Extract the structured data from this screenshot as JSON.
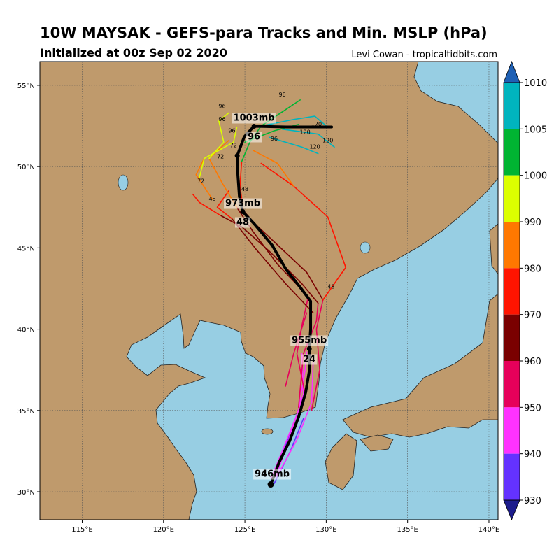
{
  "chart_data": {
    "type": "map",
    "title": "10W MAYSAK - GEFS-para Tracks and Min. MSLP (hPa)",
    "subtitle": "Initialized at 00z Sep 02 2020",
    "credit": "Levi Cowan - tropicaltidbits.com",
    "xlim": [
      112.4,
      140.56
    ],
    "ylim": [
      28.28,
      56.46
    ],
    "xticks": [
      {
        "value": 115,
        "label": "115°E"
      },
      {
        "value": 120,
        "label": "120°E"
      },
      {
        "value": 125,
        "label": "125°E"
      },
      {
        "value": 130,
        "label": "130°E"
      },
      {
        "value": 135,
        "label": "135°E"
      },
      {
        "value": 140,
        "label": "140°E"
      }
    ],
    "yticks": [
      {
        "value": 30,
        "label": "30°N"
      },
      {
        "value": 35,
        "label": "35°N"
      },
      {
        "value": 40,
        "label": "40°N"
      },
      {
        "value": 45,
        "label": "45°N"
      },
      {
        "value": 50,
        "label": "50°N"
      },
      {
        "value": 55,
        "label": "55°N"
      }
    ],
    "grid": true,
    "colorbar": {
      "ticks": [
        1010,
        1005,
        1000,
        990,
        980,
        970,
        960,
        950,
        940,
        930
      ],
      "colors": [
        "#00b4be",
        "#00b432",
        "#dcff00",
        "#ff7800",
        "#ff1400",
        "#7a0000",
        "#e6005a",
        "#ff32ff",
        "#6432ff"
      ],
      "extend_colors": [
        "#1f60b4",
        "#1c1c8c"
      ]
    },
    "members": [
      {
        "color": "#6432ff",
        "lon": [
          126.5,
          127.3,
          128.0
        ],
        "lat": [
          30.4,
          32.3,
          34.2
        ]
      },
      {
        "color": "#6432ff",
        "lon": [
          126.8,
          127.8,
          128.6
        ],
        "lat": [
          30.5,
          32.5,
          34.5
        ]
      },
      {
        "color": "#ff32ff",
        "lon": [
          126.6,
          127.5,
          128.3,
          128.7,
          128.8
        ],
        "lat": [
          30.8,
          33.0,
          35.0,
          37.5,
          38.6
        ]
      },
      {
        "color": "#ff32ff",
        "lon": [
          127.0,
          128.2,
          129.1,
          129.2
        ],
        "lat": [
          31.0,
          33.2,
          35.5,
          38.0
        ]
      },
      {
        "color": "#ff32ff",
        "lon": [
          126.9,
          127.8,
          128.6,
          128.5
        ],
        "lat": [
          30.9,
          33.5,
          36.0,
          38.5
        ]
      },
      {
        "color": "#e6005a",
        "lon": [
          128.3,
          128.6,
          129.4,
          129.5
        ],
        "lat": [
          35.2,
          38.5,
          40.5,
          41.6
        ]
      },
      {
        "color": "#e6005a",
        "lon": [
          129.1,
          129.6,
          129.4,
          129.8
        ],
        "lat": [
          35.0,
          37.5,
          40.0,
          41.8
        ]
      },
      {
        "color": "#e6005a",
        "lon": [
          128.7,
          128.2,
          128.5,
          128.9
        ],
        "lat": [
          36.0,
          38.5,
          40.2,
          42.0
        ]
      },
      {
        "color": "#e6005a",
        "lon": [
          127.5,
          128.0,
          128.8
        ],
        "lat": [
          36.5,
          38.5,
          41.0
        ]
      },
      {
        "color": "#7a0000",
        "lon": [
          129.5,
          128.5,
          126.5,
          124.8,
          123.5
        ],
        "lat": [
          41.6,
          42.8,
          44.8,
          46.3,
          47.0
        ]
      },
      {
        "color": "#7a0000",
        "lon": [
          128.9,
          127.0,
          125.5,
          124.5
        ],
        "lat": [
          42.0,
          44.0,
          46.0,
          47.5
        ]
      },
      {
        "color": "#7a0000",
        "lon": [
          129.8,
          128.8,
          127.2,
          125.6,
          124.9
        ],
        "lat": [
          41.8,
          43.5,
          45.0,
          46.5,
          47.3
        ]
      },
      {
        "color": "#7a0000",
        "lon": [
          129.2,
          127.5,
          125.7,
          124.2
        ],
        "lat": [
          41.0,
          42.8,
          44.9,
          46.8
        ]
      },
      {
        "color": "#ff1400",
        "lon": [
          123.5,
          122.2,
          121.8
        ],
        "lat": [
          47.0,
          47.8,
          48.3
        ]
      },
      {
        "color": "#ff1400",
        "lon": [
          124.9,
          124.7,
          124.8
        ],
        "lat": [
          47.3,
          48.8,
          50.3
        ]
      },
      {
        "color": "#ff1400",
        "lon": [
          129.8,
          131.2,
          130.1,
          128.0,
          126.0
        ],
        "lat": [
          41.8,
          43.8,
          46.9,
          48.8,
          50.2
        ]
      },
      {
        "color": "#ff1400",
        "lon": [
          124.2,
          123.3,
          124.0
        ],
        "lat": [
          46.8,
          47.5,
          48.5
        ]
      },
      {
        "color": "#ff7800",
        "lon": [
          128.0,
          127.0,
          125.5
        ],
        "lat": [
          48.8,
          50.2,
          51.0
        ]
      },
      {
        "color": "#ff7800",
        "lon": [
          123.0,
          122.0,
          122.5
        ],
        "lat": [
          48.0,
          49.5,
          50.5
        ]
      },
      {
        "color": "#ff7800",
        "lon": [
          124.5,
          123.6,
          122.8,
          124.0
        ],
        "lat": [
          47.5,
          49.0,
          50.5,
          51.6
        ]
      },
      {
        "color": "#dcff00",
        "lon": [
          122.8,
          123.7,
          123.4,
          124.0
        ],
        "lat": [
          50.5,
          51.5,
          52.8,
          53.3
        ]
      },
      {
        "color": "#dcff00",
        "lon": [
          122.2,
          122.5,
          124.3,
          124.5
        ],
        "lat": [
          49.3,
          50.5,
          51.5,
          52.4
        ]
      },
      {
        "color": "#00b432",
        "lon": [
          124.8,
          125.3,
          126.0,
          127.5,
          128.4
        ],
        "lat": [
          50.3,
          51.5,
          52.5,
          53.5,
          54.1
        ]
      },
      {
        "color": "#00b432",
        "lon": [
          125.0,
          126.8,
          128.3
        ],
        "lat": [
          51.5,
          52.2,
          52.6
        ]
      },
      {
        "color": "#00b4be",
        "lon": [
          126.0,
          128.0,
          129.3,
          130.0
        ],
        "lat": [
          52.5,
          52.9,
          53.1,
          52.5
        ]
      },
      {
        "color": "#00b4be",
        "lon": [
          126.5,
          128.5,
          129.5
        ],
        "lat": [
          51.8,
          51.2,
          50.8
        ]
      },
      {
        "color": "#00b4be",
        "lon": [
          127.3,
          129.5,
          130.5
        ],
        "lat": [
          52.3,
          52.0,
          51.2
        ]
      }
    ],
    "hour_marks": [
      {
        "hour": 96,
        "lon": 127.3,
        "lat": 54.3
      },
      {
        "hour": 96,
        "lon": 123.6,
        "lat": 53.6
      },
      {
        "hour": 96,
        "lon": 123.6,
        "lat": 52.8
      },
      {
        "hour": 96,
        "lon": 124.2,
        "lat": 52.1
      },
      {
        "hour": 96,
        "lon": 126.8,
        "lat": 51.6
      },
      {
        "hour": 120,
        "lon": 129.4,
        "lat": 52.5
      },
      {
        "hour": 120,
        "lon": 128.7,
        "lat": 52.0
      },
      {
        "hour": 120,
        "lon": 130.1,
        "lat": 51.5
      },
      {
        "hour": 120,
        "lon": 129.3,
        "lat": 51.1
      },
      {
        "hour": 72,
        "lon": 123.5,
        "lat": 50.5
      },
      {
        "hour": 72,
        "lon": 122.3,
        "lat": 49.0
      },
      {
        "hour": 72,
        "lon": 124.3,
        "lat": 51.2
      },
      {
        "hour": 48,
        "lon": 123.0,
        "lat": 47.9
      },
      {
        "hour": 48,
        "lon": 125.0,
        "lat": 48.5
      },
      {
        "hour": 48,
        "lon": 130.3,
        "lat": 42.5
      }
    ],
    "mean_track": {
      "lon": [
        126.59,
        127.11,
        127.75,
        128.31,
        128.74,
        128.96,
        128.96,
        129.04,
        129.04,
        128.4,
        127.54,
        126.68,
        125.6,
        124.87,
        124.66,
        124.57,
        124.53,
        124.96,
        125.56,
        127.54,
        130.33
      ],
      "lat": [
        30.45,
        31.82,
        33.12,
        34.62,
        36.13,
        37.42,
        38.8,
        40.0,
        41.72,
        42.58,
        43.66,
        45.16,
        46.45,
        47.23,
        48.18,
        49.47,
        50.67,
        51.83,
        52.48,
        52.44,
        52.44
      ]
    },
    "positions": [
      {
        "lon": 126.59,
        "lat": 30.45,
        "pressure_label": "946mb"
      },
      {
        "lon": 128.96,
        "lat": 38.8,
        "pressure_label": "955mb",
        "hour": 24
      },
      {
        "lon": 124.87,
        "lat": 47.23,
        "pressure_label": "973mb",
        "hour": 48
      },
      {
        "lon": 124.53,
        "lat": 50.67
      },
      {
        "lon": 125.56,
        "lat": 52.48,
        "pressure_label": "1003mb",
        "hour": 96
      }
    ]
  }
}
